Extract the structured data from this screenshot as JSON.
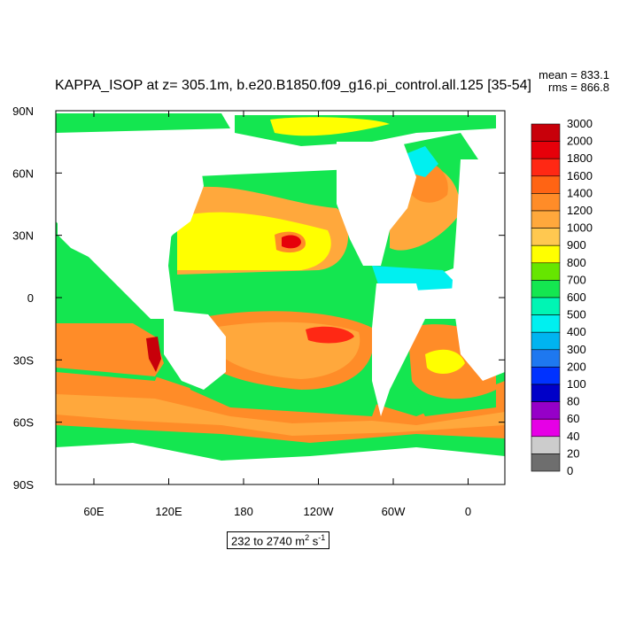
{
  "title": "KAPPA_ISOP at z= 305.1m, b.e20.B1850.f09_g16.pi_control.all.125 [35-54]",
  "stats": {
    "mean": "mean = 833.1",
    "rms": "rms = 866.8"
  },
  "range": {
    "text": "232 to 2740 m",
    "exp1": "2",
    "mid": " s",
    "exp2": "-1"
  },
  "lat_ticks": [
    "90N",
    "60N",
    "30N",
    "0",
    "30S",
    "60S",
    "90S"
  ],
  "lon_ticks": [
    "60E",
    "120E",
    "180",
    "120W",
    "60W",
    "0"
  ],
  "colorbar": {
    "labels": [
      "3000",
      "2000",
      "1800",
      "1600",
      "1400",
      "1200",
      "1000",
      "900",
      "800",
      "700",
      "600",
      "500",
      "400",
      "300",
      "200",
      "100",
      "80",
      "60",
      "40",
      "20",
      "0"
    ],
    "colors": [
      "#c8000a",
      "#e6000a",
      "#ff2814",
      "#ff6414",
      "#ff8c28",
      "#ffa83c",
      "#ffc850",
      "#ffff00",
      "#66e600",
      "#14e650",
      "#00f5b4",
      "#00f0f0",
      "#00b4f0",
      "#1e78f0",
      "#0032ff",
      "#0000c8",
      "#9600c8",
      "#e600e6",
      "#cccccc",
      "#6e6e6e"
    ]
  },
  "map_colors": {
    "ocean_base": "#14e650",
    "land": "#ffffff"
  }
}
